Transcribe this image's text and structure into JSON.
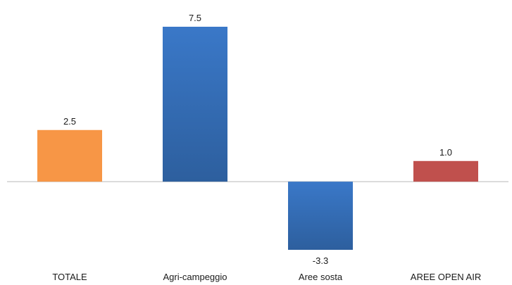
{
  "chart_data": {
    "type": "bar",
    "title": "",
    "xlabel": "",
    "ylabel": "",
    "categories": [
      "TOTALE",
      "Agri-campeggio",
      "Aree sosta",
      "AREE OPEN AIR"
    ],
    "values": [
      2.5,
      7.5,
      -3.3,
      1.0
    ],
    "data_labels": [
      "2.5",
      "7.5",
      "-3.3",
      "1.0"
    ],
    "ylim": [
      -3.3,
      7.5
    ],
    "grid": false,
    "legend": "none",
    "colors": [
      "#f79646",
      "#3a78c8",
      "#3a78c8",
      "#c0504d"
    ],
    "gradient_dark": [
      "#f79646",
      "#2d5f9e",
      "#2d5f9e",
      "#c0504d"
    ],
    "baseline_color": "#b7b7b7"
  }
}
